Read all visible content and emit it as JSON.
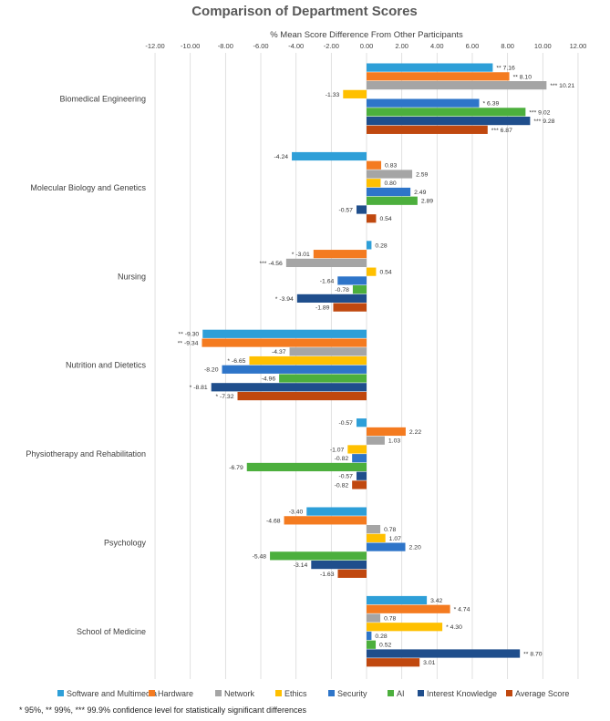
{
  "chart_data": {
    "type": "bar",
    "orientation": "horizontal",
    "title": "Comparison of Department Scores",
    "xlabel": "% Mean Score Difference From Other Participants",
    "ylabel": "",
    "xlim": [
      -12,
      12
    ],
    "xticks": [
      "-12.00",
      "-10.00",
      "-8.00",
      "-6.00",
      "-4.00",
      "-2.00",
      "0.00",
      "2.00",
      "4.00",
      "6.00",
      "8.00",
      "10.00",
      "12.00"
    ],
    "grid": true,
    "legend_position": "bottom",
    "categories": [
      "Biomedical Engineering",
      "Molecular Biology and Genetics",
      "Nursing",
      "Nutrition and Dietetics",
      "Physiotherapy and Rehabilitation",
      "Psychology",
      "School of Medicine"
    ],
    "series": [
      {
        "name": "Software and Multimedia",
        "color": "#2E9FD8",
        "values": [
          7.16,
          -4.24,
          0.28,
          -9.3,
          -0.57,
          -3.4,
          3.42
        ],
        "labels": [
          "** 7.16",
          "-4.24",
          "0.28",
          "** -9.30",
          "-0.57",
          "-3.40",
          "3.42"
        ]
      },
      {
        "name": "Hardware",
        "color": "#F47B20",
        "values": [
          8.1,
          0.83,
          -3.01,
          -9.34,
          2.22,
          -4.68,
          4.74
        ],
        "labels": [
          "** 8.10",
          "0.83",
          "* -3.01",
          "** -9.34",
          "2.22",
          "-4.68",
          "* 4.74"
        ]
      },
      {
        "name": "Network",
        "color": "#A5A5A5",
        "values": [
          10.21,
          2.59,
          -4.56,
          -4.37,
          1.03,
          0.78,
          0.78
        ],
        "labels": [
          "*** 10.21",
          "2.59",
          "*** -4.56",
          "-4.37",
          "1.03",
          "0.78",
          "0.78"
        ]
      },
      {
        "name": "Ethics",
        "color": "#FFC000",
        "values": [
          -1.33,
          0.8,
          0.54,
          -6.65,
          -1.07,
          1.07,
          4.3
        ],
        "labels": [
          "-1.33",
          "0.80",
          "0.54",
          "* -6.65",
          "-1.07",
          "1.07",
          "* 4.30"
        ]
      },
      {
        "name": "Security",
        "color": "#2E75C9",
        "values": [
          6.39,
          2.49,
          -1.64,
          -8.2,
          -0.82,
          2.2,
          0.28
        ],
        "labels": [
          "* 6.39",
          "2.49",
          "-1.64",
          "-8.20",
          "-0.82",
          "2.20",
          "0.28"
        ]
      },
      {
        "name": "AI",
        "color": "#4CAF3D",
        "values": [
          9.02,
          2.89,
          -0.78,
          -4.96,
          -6.79,
          -5.48,
          0.52
        ],
        "labels": [
          "*** 9.02",
          "2.89",
          "-0.78",
          "-4.96",
          "-6.79",
          "-5.48",
          "0.52"
        ]
      },
      {
        "name": "Interest Knowledge",
        "color": "#1F4E8C",
        "values": [
          9.28,
          -0.57,
          -3.94,
          -8.81,
          -0.57,
          -3.14,
          8.7
        ],
        "labels": [
          "*** 9.28",
          "-0.57",
          "* -3.94",
          "* -8.81",
          "-0.57",
          "-3.14",
          "** 8.70"
        ]
      },
      {
        "name": "Average Score",
        "color": "#C0480F",
        "values": [
          6.87,
          0.54,
          -1.89,
          -7.32,
          -0.82,
          -1.63,
          3.01
        ],
        "labels": [
          "*** 6.87",
          "0.54",
          "-1.89",
          "* -7.32",
          "-0.82",
          "-1.63",
          "3.01"
        ]
      }
    ],
    "footnote": "* 95%, ** 99%, *** 99.9% confidence level for statistically significant differences"
  }
}
